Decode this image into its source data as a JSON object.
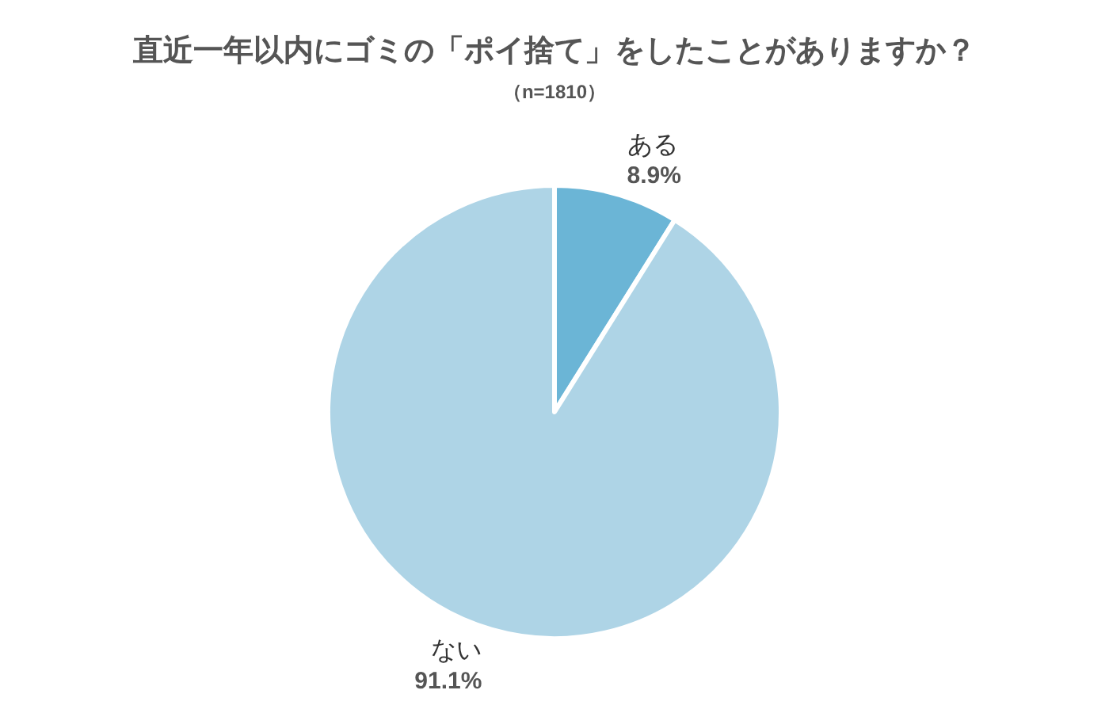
{
  "chart_data": {
    "type": "pie",
    "title": "直近一年以内にゴミの「ポイ捨て」をしたことがありますか？",
    "subtitle": "（n=1810）",
    "categories": [
      "ある",
      "ない"
    ],
    "values": [
      8.9,
      91.1
    ],
    "colors": [
      "#6bb5d6",
      "#aed4e6"
    ],
    "value_labels": [
      "8.9%",
      "91.1%"
    ]
  }
}
